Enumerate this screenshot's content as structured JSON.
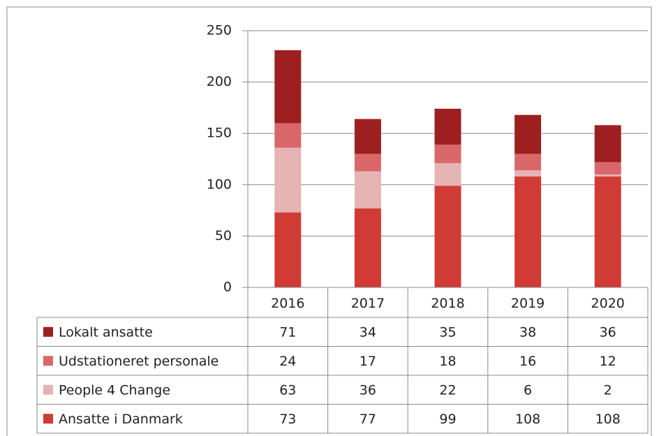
{
  "chart_data": {
    "type": "bar",
    "stacked": true,
    "categories": [
      "2016",
      "2017",
      "2018",
      "2019",
      "2020"
    ],
    "series": [
      {
        "name": "Ansatte i Danmark",
        "color": "#d13b35",
        "values": [
          73,
          77,
          99,
          108,
          108
        ]
      },
      {
        "name": "People 4 Change",
        "color": "#e6b3b5",
        "values": [
          63,
          36,
          22,
          6,
          2
        ]
      },
      {
        "name": "Udstationeret personale",
        "color": "#d9676a",
        "values": [
          24,
          17,
          18,
          16,
          12
        ]
      },
      {
        "name": "Lokalt ansatte",
        "color": "#9e1f1f",
        "values": [
          71,
          34,
          35,
          38,
          36
        ]
      }
    ],
    "ylim": [
      0,
      250
    ],
    "yticks": [
      0,
      50,
      100,
      150,
      200,
      250
    ],
    "grid": true,
    "data_table": true
  }
}
